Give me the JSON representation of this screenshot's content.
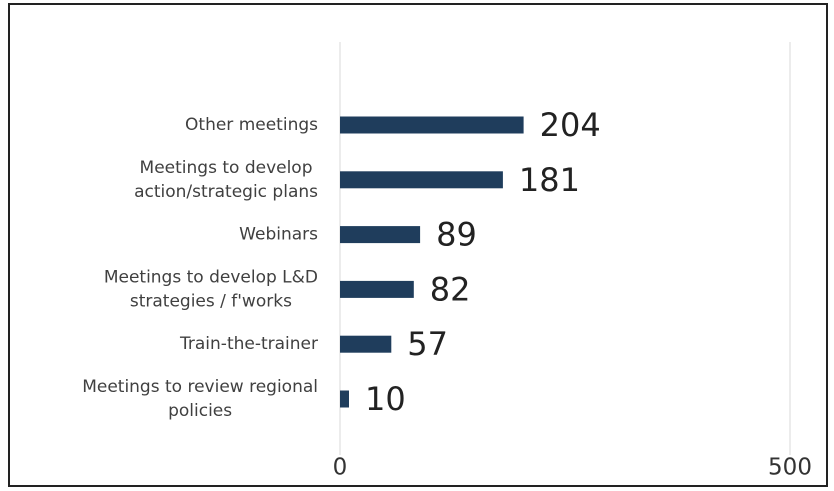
{
  "chart_data": {
    "type": "hbar",
    "categories": [
      [
        "Other meetings"
      ],
      [
        "Meetings to develop",
        "action/strategic plans"
      ],
      [
        "Webinars"
      ],
      [
        "Meetings to develop L&D",
        "strategies / f'works"
      ],
      [
        "Train-the-trainer"
      ],
      [
        "Meetings to review regional",
        "policies"
      ]
    ],
    "values": [
      204,
      181,
      89,
      82,
      57,
      10
    ],
    "color": "#1f3d5c",
    "xlim": [
      0,
      500
    ],
    "xticks": [
      0,
      500
    ],
    "grid": true
  }
}
